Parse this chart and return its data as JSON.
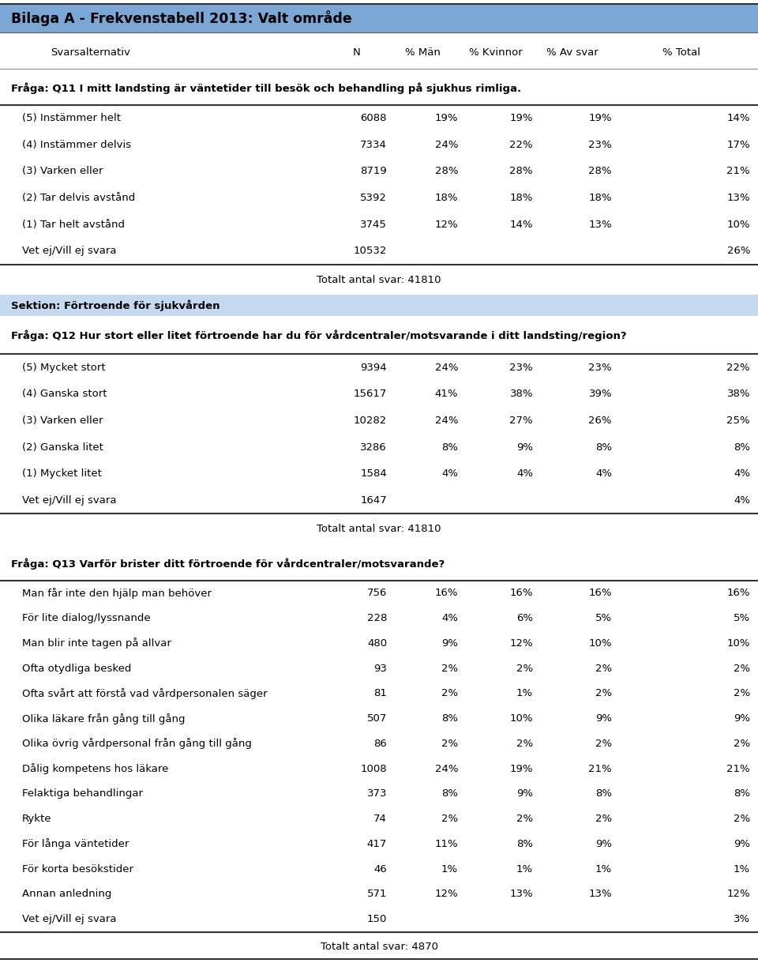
{
  "title": "Bilaga A - Frekvenstabell 2013: Valt område",
  "title_bg": "#7BA7D4",
  "section2_header_bg": "#C5D9F1",
  "bg_color": "#ffffff",
  "text_color": "#000000",
  "header_cols": [
    "Svarsalternativ",
    "N",
    "% Män",
    "% Kvinnor",
    "% Av svar",
    "% Total"
  ],
  "section1_question": "Fråga: Q11 I mitt landsting är väntetider till besök och behandling på sjukhus rimliga.",
  "section1_rows": [
    [
      "(5) Instämmer helt",
      "6088",
      "19%",
      "19%",
      "19%",
      "14%"
    ],
    [
      "(4) Instämmer delvis",
      "7334",
      "24%",
      "22%",
      "23%",
      "17%"
    ],
    [
      "(3) Varken eller",
      "8719",
      "28%",
      "28%",
      "28%",
      "21%"
    ],
    [
      "(2) Tar delvis avstånd",
      "5392",
      "18%",
      "18%",
      "18%",
      "13%"
    ],
    [
      "(1) Tar helt avstånd",
      "3745",
      "12%",
      "14%",
      "13%",
      "10%"
    ],
    [
      "Vet ej/Vill ej svara",
      "10532",
      "",
      "",
      "",
      "26%"
    ]
  ],
  "section1_total": "Totalt antal svar: 41810",
  "section2_header": "Sektion: Förtroende för sjukvården",
  "section2_question": "Fråga: Q12 Hur stort eller litet förtroende har du för vårdcentraler/motsvarande i ditt landsting/region?",
  "section2_rows": [
    [
      "(5) Mycket stort",
      "9394",
      "24%",
      "23%",
      "23%",
      "22%"
    ],
    [
      "(4) Ganska stort",
      "15617",
      "41%",
      "38%",
      "39%",
      "38%"
    ],
    [
      "(3) Varken eller",
      "10282",
      "24%",
      "27%",
      "26%",
      "25%"
    ],
    [
      "(2) Ganska litet",
      "3286",
      "8%",
      "9%",
      "8%",
      "8%"
    ],
    [
      "(1) Mycket litet",
      "1584",
      "4%",
      "4%",
      "4%",
      "4%"
    ],
    [
      "Vet ej/Vill ej svara",
      "1647",
      "",
      "",
      "",
      "4%"
    ]
  ],
  "section2_total": "Totalt antal svar: 41810",
  "section3_question": "Fråga: Q13 Varför brister ditt förtroende för vårdcentraler/motsvarande?",
  "section3_rows": [
    [
      "Man får inte den hjälp man behöver",
      "756",
      "16%",
      "16%",
      "16%",
      "16%"
    ],
    [
      "För lite dialog/lyssnande",
      "228",
      "4%",
      "6%",
      "5%",
      "5%"
    ],
    [
      "Man blir inte tagen på allvar",
      "480",
      "9%",
      "12%",
      "10%",
      "10%"
    ],
    [
      "Ofta otydliga besked",
      "93",
      "2%",
      "2%",
      "2%",
      "2%"
    ],
    [
      "Ofta svårt att förstå vad vårdpersonalen säger",
      "81",
      "2%",
      "1%",
      "2%",
      "2%"
    ],
    [
      "Olika läkare från gång till gång",
      "507",
      "8%",
      "10%",
      "9%",
      "9%"
    ],
    [
      "Olika övrig vårdpersonal från gång till gång",
      "86",
      "2%",
      "2%",
      "2%",
      "2%"
    ],
    [
      "Dålig kompetens hos läkare",
      "1008",
      "24%",
      "19%",
      "21%",
      "21%"
    ],
    [
      "Felaktiga behandlingar",
      "373",
      "8%",
      "9%",
      "8%",
      "8%"
    ],
    [
      "Rykte",
      "74",
      "2%",
      "2%",
      "2%",
      "2%"
    ],
    [
      "För långa väntetider",
      "417",
      "11%",
      "8%",
      "9%",
      "9%"
    ],
    [
      "För korta besökstider",
      "46",
      "1%",
      "1%",
      "1%",
      "1%"
    ],
    [
      "Annan anledning",
      "571",
      "12%",
      "13%",
      "13%",
      "12%"
    ],
    [
      "Vet ej/Vill ej svara",
      "150",
      "",
      "",
      "",
      "3%"
    ]
  ],
  "section3_total": "Totalt antal svar: 4870",
  "font_size_title": 12.5,
  "font_size_header": 9.5,
  "font_size_data": 9.5,
  "font_size_question": 9.5,
  "font_size_section": 9.5,
  "font_size_total": 9.5
}
